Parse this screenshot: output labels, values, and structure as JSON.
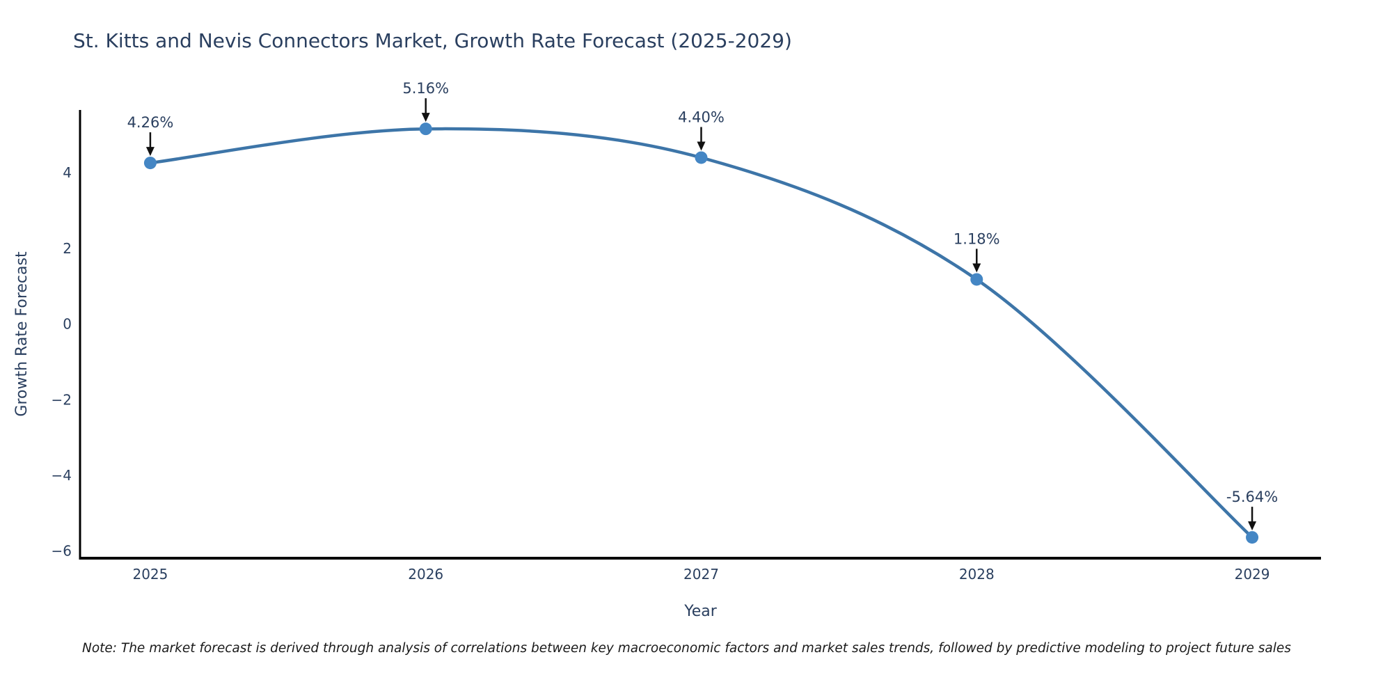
{
  "title": "St. Kitts and Nevis Connectors Market, Growth Rate Forecast (2025-2029)",
  "note": "Note: The market forecast is derived through analysis of correlations between key macroeconomic factors and market sales trends, followed by predictive modeling to project future sales",
  "colors": {
    "background": "#ffffff",
    "title_text": "#2a3f5f",
    "axis_text": "#2a3f5f",
    "axis_line": "#000000",
    "series_line": "#3d75a8",
    "marker_fill": "#4486c4",
    "annotation_text": "#2a3f5f",
    "annotation_arrow": "#111111",
    "note_text": "#1a1a1a"
  },
  "chart_data": {
    "type": "line",
    "title": "St. Kitts and Nevis Connectors Market, Growth Rate Forecast (2025-2029)",
    "xlabel": "Year",
    "ylabel": "Growth Rate Forecast",
    "x": [
      2025,
      2026,
      2027,
      2028,
      2029
    ],
    "y": [
      4.26,
      5.16,
      4.4,
      1.18,
      -5.64
    ],
    "point_labels": [
      "4.26%",
      "5.16%",
      "4.40%",
      "1.18%",
      "-5.64%"
    ],
    "xticks": [
      {
        "value": 2025,
        "label": "2025"
      },
      {
        "value": 2026,
        "label": "2026"
      },
      {
        "value": 2027,
        "label": "2027"
      },
      {
        "value": 2028,
        "label": "2028"
      },
      {
        "value": 2029,
        "label": "2029"
      }
    ],
    "yticks": [
      {
        "value": 4,
        "label": "4"
      },
      {
        "value": 2,
        "label": "2"
      },
      {
        "value": 0,
        "label": "0"
      },
      {
        "value": -2,
        "label": "−2"
      },
      {
        "value": -4,
        "label": "−4"
      },
      {
        "value": -6,
        "label": "−6"
      }
    ],
    "xlim": [
      2024.745,
      2029.25
    ],
    "ylim": [
      -6.19,
      5.66
    ],
    "grid": false,
    "legend": "none",
    "line_shape": "spline",
    "markers": true
  }
}
